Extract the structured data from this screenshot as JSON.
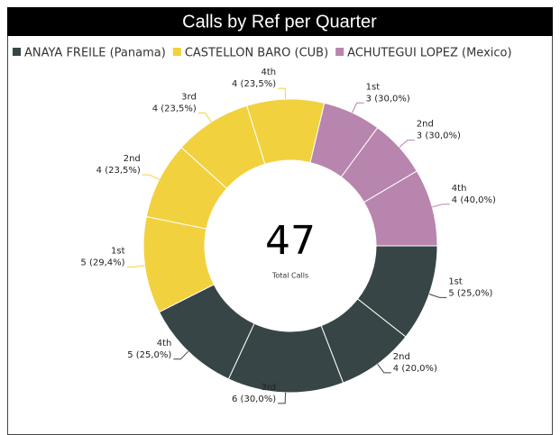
{
  "chart_data": {
    "type": "donut",
    "title": "Calls by Ref per Quarter",
    "total": 47,
    "total_label": "Total Calls",
    "series": [
      {
        "name": "ANAYA FREILE (Panama)",
        "color": "#374546",
        "categories": [
          "1st",
          "2nd",
          "3rd",
          "4th"
        ],
        "values": [
          5,
          4,
          6,
          5
        ],
        "value_labels": [
          "5 (25,0%)",
          "4 (20,0%)",
          "6 (30,0%)",
          "5 (25,0%)"
        ]
      },
      {
        "name": "CASTELLON BARO (CUB)",
        "color": "#f2d13f",
        "categories": [
          "1st",
          "2nd",
          "3rd",
          "4th"
        ],
        "values": [
          5,
          4,
          4,
          4
        ],
        "value_labels": [
          "5 (29,4%)",
          "4 (23,5%)",
          "4 (23,5%)",
          "4 (23,5%)"
        ]
      },
      {
        "name": "ACHUTEGUI LOPEZ (Mexico)",
        "color": "#b785ad",
        "categories": [
          "1st",
          "2nd",
          "4th"
        ],
        "values": [
          3,
          3,
          4
        ],
        "value_labels": [
          "3 (30,0%)",
          "3 (30,0%)",
          "4 (40,0%)"
        ]
      }
    ]
  }
}
